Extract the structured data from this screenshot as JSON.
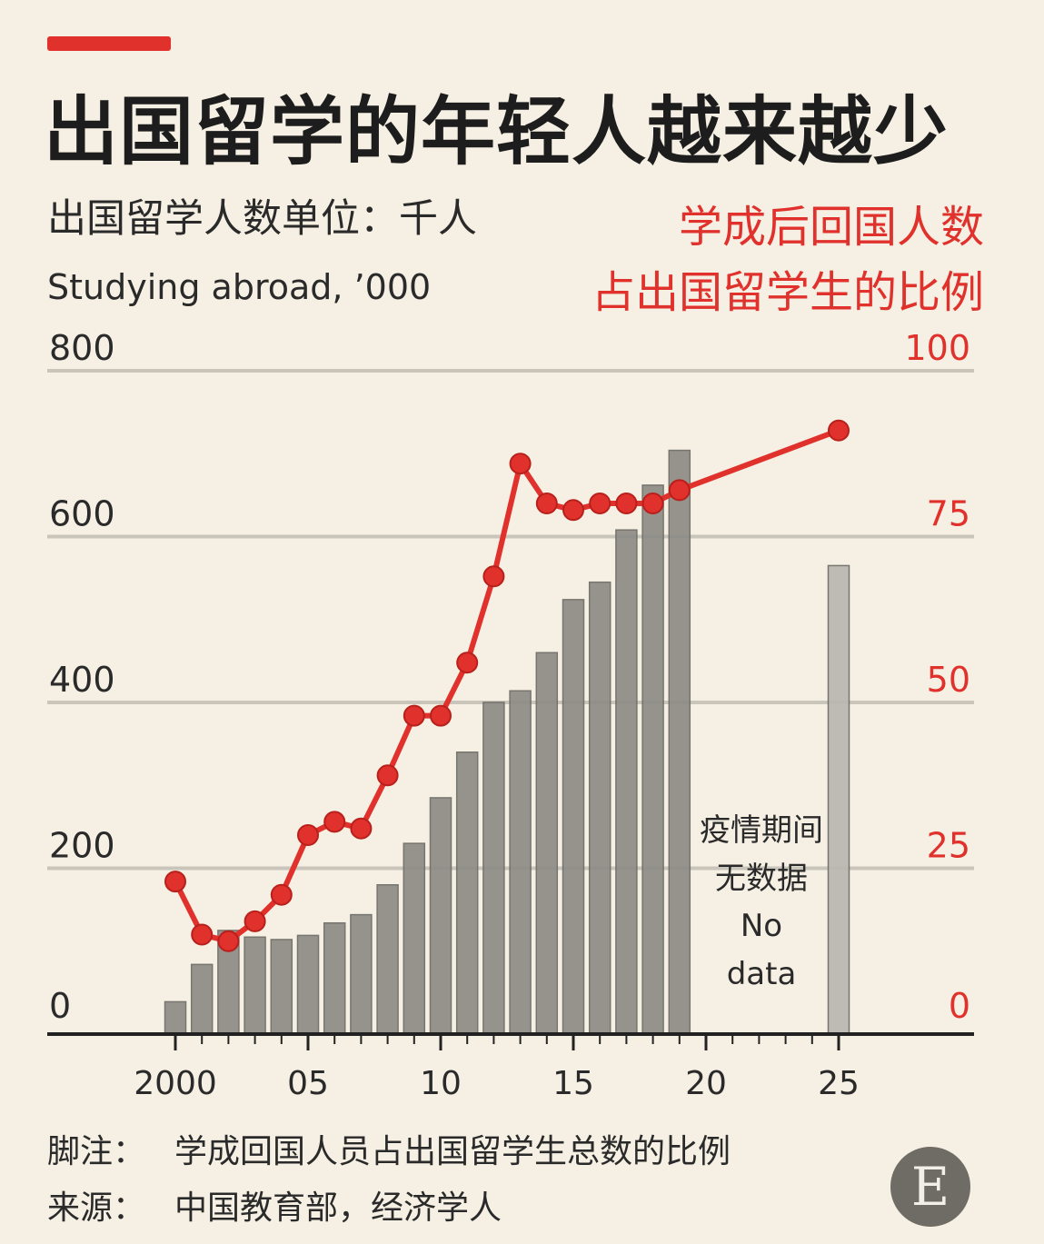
{
  "title": "出国留学的年轻人越来越少",
  "subtitle_left_cn": "出国留学人数单位：千人",
  "subtitle_left_en": "Studying abroad, ’000",
  "subtitle_right_line1": "学成后回国人数",
  "subtitle_right_line2": "占出国留学生的比例",
  "nodata_lines": [
    "疫情期间",
    "无数据",
    "No",
    "data"
  ],
  "footnote_label": "脚注：",
  "footnote_text": "学成回国人员占出国留学生总数的比例",
  "source_label": "来源：",
  "source_text": "中国教育部，经济学人",
  "logo_letter": "E",
  "colors": {
    "accent": "#e0312c",
    "bars": "#8e8c86",
    "bar_2025": "#b9b7b0",
    "background": "#f5f0e3"
  },
  "chart_data": {
    "type": "bar",
    "x_tick_labels": [
      "2000",
      "05",
      "10",
      "15",
      "20",
      "25"
    ],
    "y_left_ticks": [
      "0",
      "200",
      "400",
      "600",
      "800"
    ],
    "y_right_ticks": [
      "0",
      "25",
      "50",
      "75",
      "100"
    ],
    "y_left_range": [
      0,
      800
    ],
    "y_right_range": [
      0,
      100
    ],
    "grid": true,
    "series": [
      {
        "axis": "left",
        "type": "bar",
        "x": [
          2000,
          2001,
          2002,
          2003,
          2004,
          2005,
          2006,
          2007,
          2008,
          2009,
          2010,
          2011,
          2012,
          2013,
          2014,
          2015,
          2016,
          2017,
          2018,
          2019,
          2025
        ],
        "values": [
          39,
          84,
          125,
          117,
          114,
          119,
          134,
          144,
          180,
          230,
          285,
          340,
          400,
          414,
          460,
          524,
          545,
          608,
          662,
          704,
          565
        ]
      },
      {
        "axis": "right",
        "type": "line",
        "x": [
          2000,
          2001,
          2002,
          2003,
          2004,
          2005,
          2006,
          2007,
          2008,
          2009,
          2010,
          2011,
          2012,
          2013,
          2014,
          2015,
          2016,
          2017,
          2018,
          2019,
          2025
        ],
        "values": [
          23,
          15,
          14,
          17,
          21,
          30,
          32,
          31,
          39,
          48,
          48,
          56,
          69,
          86,
          80,
          79,
          80,
          80,
          80,
          82,
          91
        ]
      }
    ]
  }
}
